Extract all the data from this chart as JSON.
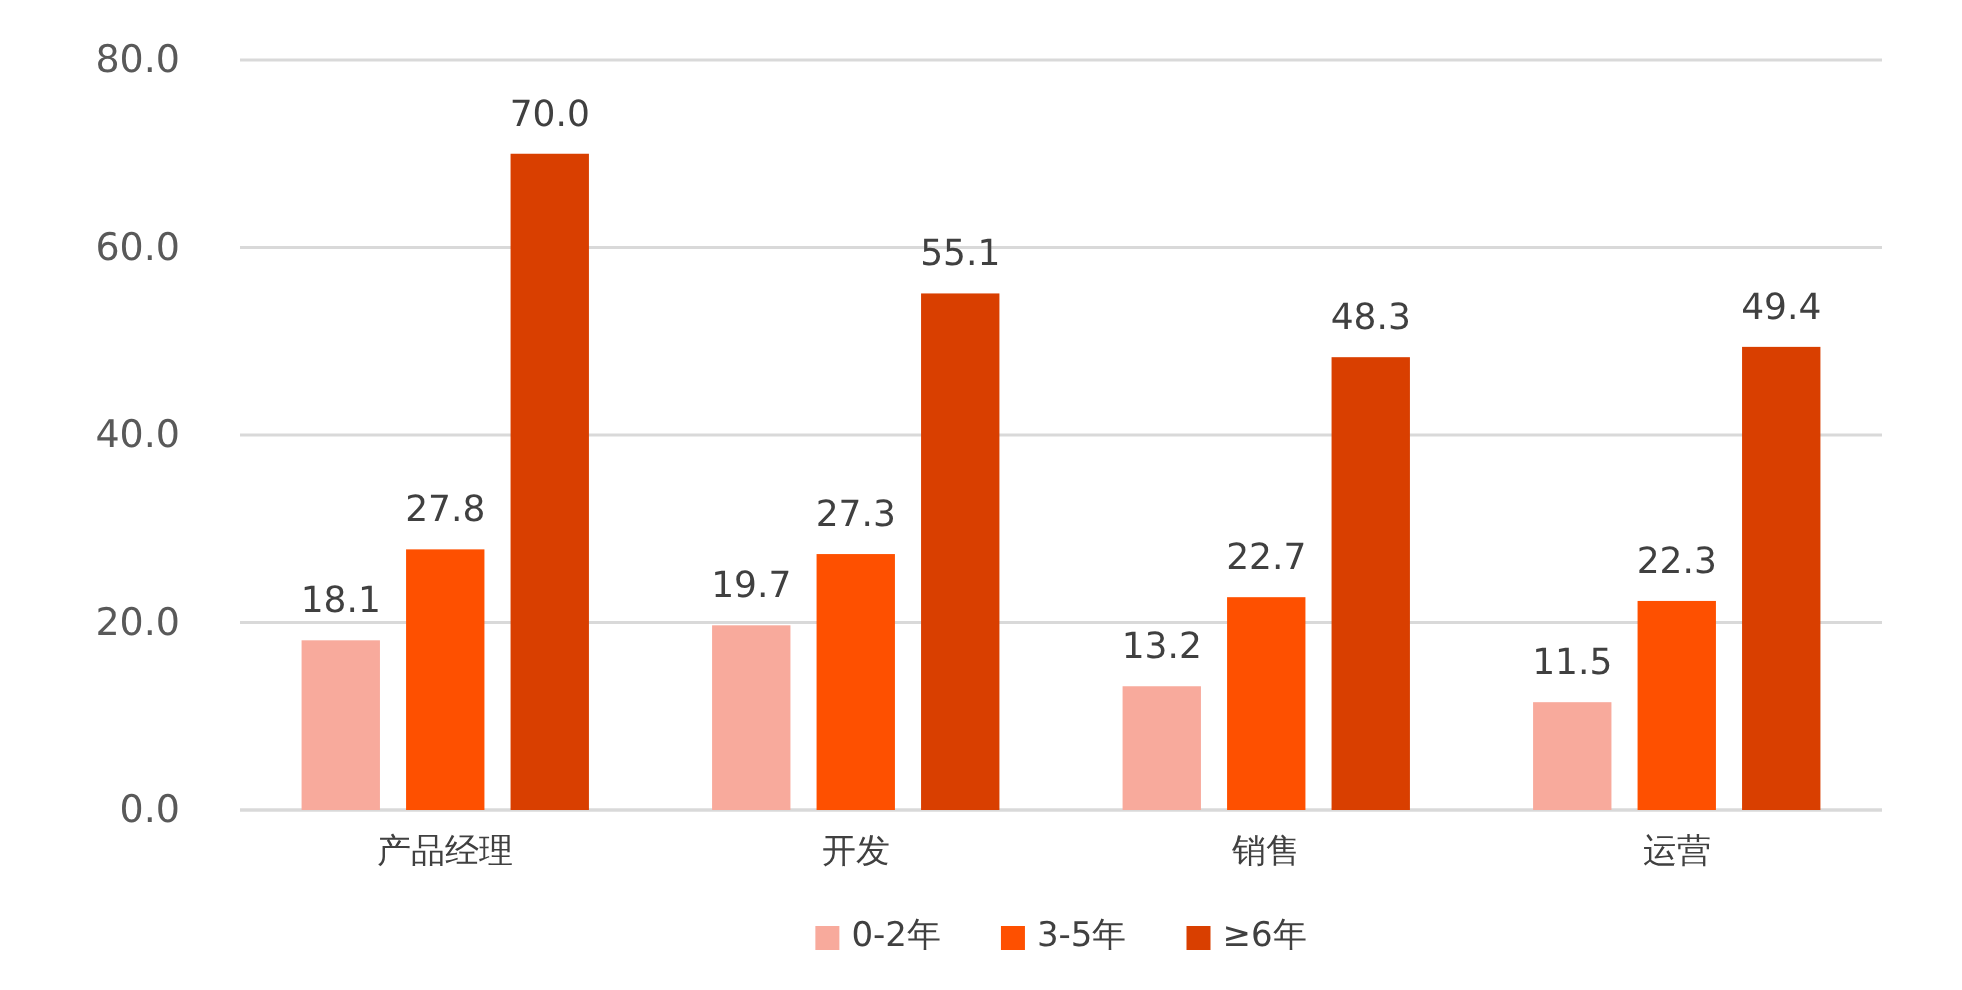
{
  "chart_data": {
    "type": "bar",
    "categories": [
      "产品经理",
      "开发",
      "销售",
      "运营"
    ],
    "series": [
      {
        "name": "0-2年",
        "color": "#f8aa9c",
        "values": [
          18.1,
          19.7,
          13.2,
          11.5
        ],
        "value_labels": [
          "18.1",
          "19.7",
          "13.2",
          "11.5"
        ]
      },
      {
        "name": "3-5年",
        "color": "#fe5000",
        "values": [
          27.8,
          27.3,
          22.7,
          22.3
        ],
        "value_labels": [
          "27.8",
          "27.3",
          "22.7",
          "22.3"
        ]
      },
      {
        "name": "≥6年",
        "color": "#d93f00",
        "values": [
          70.0,
          55.1,
          48.3,
          49.4
        ],
        "value_labels": [
          "70.0",
          "55.1",
          "48.3",
          "49.4"
        ]
      }
    ],
    "ylim": [
      0,
      80
    ],
    "yticks": [
      {
        "value": 0,
        "label": "0.0"
      },
      {
        "value": 20,
        "label": "20.0"
      },
      {
        "value": 40,
        "label": "40.0"
      },
      {
        "value": 60,
        "label": "60.0"
      },
      {
        "value": 80,
        "label": "80.0"
      }
    ],
    "grid": "y",
    "legend": "bottom"
  }
}
